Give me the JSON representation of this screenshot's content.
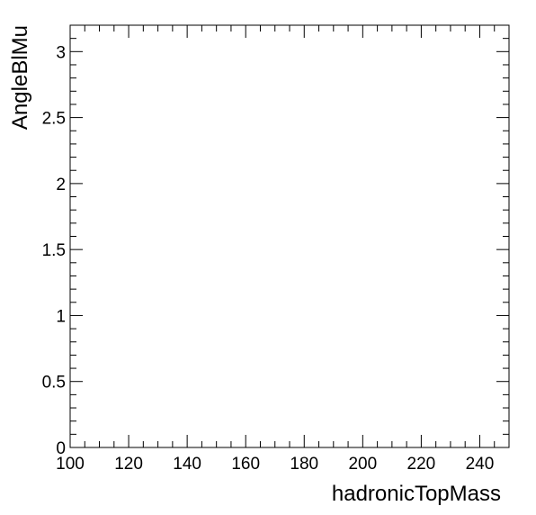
{
  "chart_data": {
    "type": "scatter",
    "title": "",
    "xlabel": "hadronicTopMass",
    "ylabel": "AngleBlMu",
    "xlim": [
      100,
      250
    ],
    "ylim": [
      0,
      3.2
    ],
    "x_ticks": [
      "100",
      "120",
      "140",
      "160",
      "180",
      "200",
      "220",
      "240"
    ],
    "y_ticks": [
      "0",
      "0.5",
      "1",
      "1.5",
      "2",
      "2.5",
      "3"
    ],
    "grid": false,
    "series": []
  }
}
